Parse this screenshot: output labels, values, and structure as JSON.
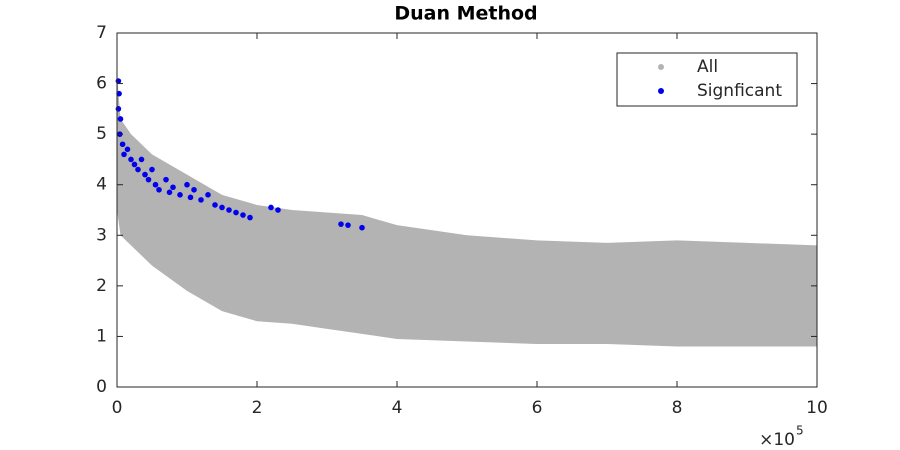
{
  "chart_data": {
    "type": "scatter",
    "title": "Duan Method",
    "xlim": [
      0,
      10
    ],
    "xticks": [
      0,
      2,
      4,
      6,
      8,
      10
    ],
    "ylim": [
      0,
      7
    ],
    "yticks": [
      0,
      1,
      2,
      3,
      4,
      5,
      6,
      7
    ],
    "xscale_label": "×10",
    "xscale_exponent": "5",
    "legend": "upper right",
    "series": [
      {
        "name": "All",
        "color": "#b3b3b3",
        "x": [
          0,
          0.05,
          0.2,
          0.5,
          1,
          1.5,
          2,
          2.5,
          3,
          3.5,
          4,
          5,
          6,
          7,
          8,
          9,
          10
        ],
        "upper": [
          6.2,
          5.3,
          5.0,
          4.6,
          4.2,
          3.8,
          3.6,
          3.5,
          3.45,
          3.4,
          3.2,
          3.0,
          2.9,
          2.85,
          2.9,
          2.85,
          2.8
        ],
        "lower": [
          3.5,
          3.0,
          2.8,
          2.4,
          1.9,
          1.5,
          1.3,
          1.25,
          1.15,
          1.05,
          0.95,
          0.9,
          0.85,
          0.85,
          0.8,
          0.8,
          0.8
        ]
      },
      {
        "name": "Signficant",
        "color": "#0000ee",
        "x": [
          0.02,
          0.03,
          0.02,
          0.05,
          0.04,
          0.08,
          0.1,
          0.15,
          0.2,
          0.25,
          0.3,
          0.35,
          0.4,
          0.45,
          0.5,
          0.55,
          0.6,
          0.7,
          0.75,
          0.8,
          0.9,
          1.0,
          1.05,
          1.1,
          1.2,
          1.3,
          1.4,
          1.5,
          1.6,
          1.7,
          1.8,
          1.9,
          2.2,
          2.3,
          3.2,
          3.3,
          3.5
        ],
        "y": [
          6.05,
          5.8,
          5.5,
          5.3,
          5.0,
          4.8,
          4.6,
          4.7,
          4.5,
          4.4,
          4.3,
          4.5,
          4.2,
          4.1,
          4.3,
          4.0,
          3.9,
          4.1,
          3.85,
          3.95,
          3.8,
          4.0,
          3.75,
          3.9,
          3.7,
          3.8,
          3.6,
          3.55,
          3.5,
          3.45,
          3.4,
          3.35,
          3.55,
          3.5,
          3.22,
          3.2,
          3.15
        ]
      }
    ]
  }
}
